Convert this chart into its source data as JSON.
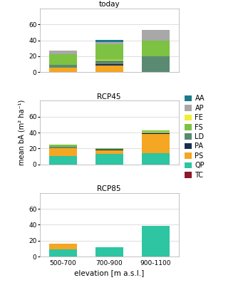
{
  "scenarios": [
    "today",
    "RCP45",
    "RCP85"
  ],
  "elevations": [
    "500-700",
    "700-900",
    "900-1100"
  ],
  "species_order": [
    "TC",
    "QP",
    "PS",
    "PA",
    "LD",
    "FE",
    "FS",
    "AP",
    "AA"
  ],
  "colors": {
    "TC": "#8b1a2a",
    "QP": "#2dC5A2",
    "PS": "#F5A623",
    "PA": "#1a2f4e",
    "LD": "#5a8a72",
    "FE": "#f0f032",
    "FS": "#7DC242",
    "AP": "#a8a8a8",
    "AA": "#1a7a8a"
  },
  "legend_order": [
    "AA",
    "AP",
    "FE",
    "FS",
    "LD",
    "PA",
    "PS",
    "QP",
    "TC"
  ],
  "stacked_data": {
    "today": {
      "500-700": {
        "TC": 0.5,
        "QP": 0,
        "PS": 5,
        "PA": 0,
        "LD": 4,
        "FE": 0,
        "FS": 13,
        "AP": 5,
        "AA": 0
      },
      "700-900": {
        "TC": 0,
        "QP": 0,
        "PS": 8,
        "PA": 2,
        "LD": 5,
        "FE": 0.5,
        "FS": 20,
        "AP": 2,
        "AA": 3
      },
      "900-1100": {
        "TC": 0,
        "QP": 0,
        "PS": 0,
        "PA": 0,
        "LD": 20,
        "FE": 0,
        "FS": 20,
        "AP": 13,
        "AA": 0
      }
    },
    "RCP45": {
      "500-700": {
        "TC": 0,
        "QP": 10,
        "PS": 10,
        "PA": 0.5,
        "LD": 1.5,
        "FE": 0.5,
        "FS": 2,
        "AP": 0,
        "AA": 0
      },
      "700-900": {
        "TC": 0,
        "QP": 13,
        "PS": 5,
        "PA": 0.5,
        "LD": 0.5,
        "FE": 0.5,
        "FS": 1,
        "AP": 0,
        "AA": 0
      },
      "900-1100": {
        "TC": 0,
        "QP": 14,
        "PS": 24,
        "PA": 1,
        "LD": 1,
        "FE": 0.5,
        "FS": 2,
        "AP": 0.5,
        "AA": 0
      }
    },
    "RCP85": {
      "500-700": {
        "TC": 0,
        "QP": 9,
        "PS": 7.5,
        "PA": 0,
        "LD": 0,
        "FE": 0,
        "FS": 0,
        "AP": 0,
        "AA": 0
      },
      "700-900": {
        "TC": 0,
        "QP": 12,
        "PS": 0,
        "PA": 0,
        "LD": 0,
        "FE": 0,
        "FS": 0,
        "AP": 0,
        "AA": 0
      },
      "900-1100": {
        "TC": 0,
        "QP": 39,
        "PS": 0,
        "PA": 0,
        "LD": 0,
        "FE": 0,
        "FS": 0,
        "AP": 0,
        "AA": 0
      }
    }
  },
  "ylim": [
    0,
    80
  ],
  "yticks": [
    0,
    20,
    40,
    60
  ],
  "ylabel": "mean bA (m² ha⁻¹)",
  "xlabel": "elevation [m a.s.l.]",
  "figsize": [
    3.48,
    4.0
  ],
  "dpi": 100,
  "bar_width": 0.6
}
